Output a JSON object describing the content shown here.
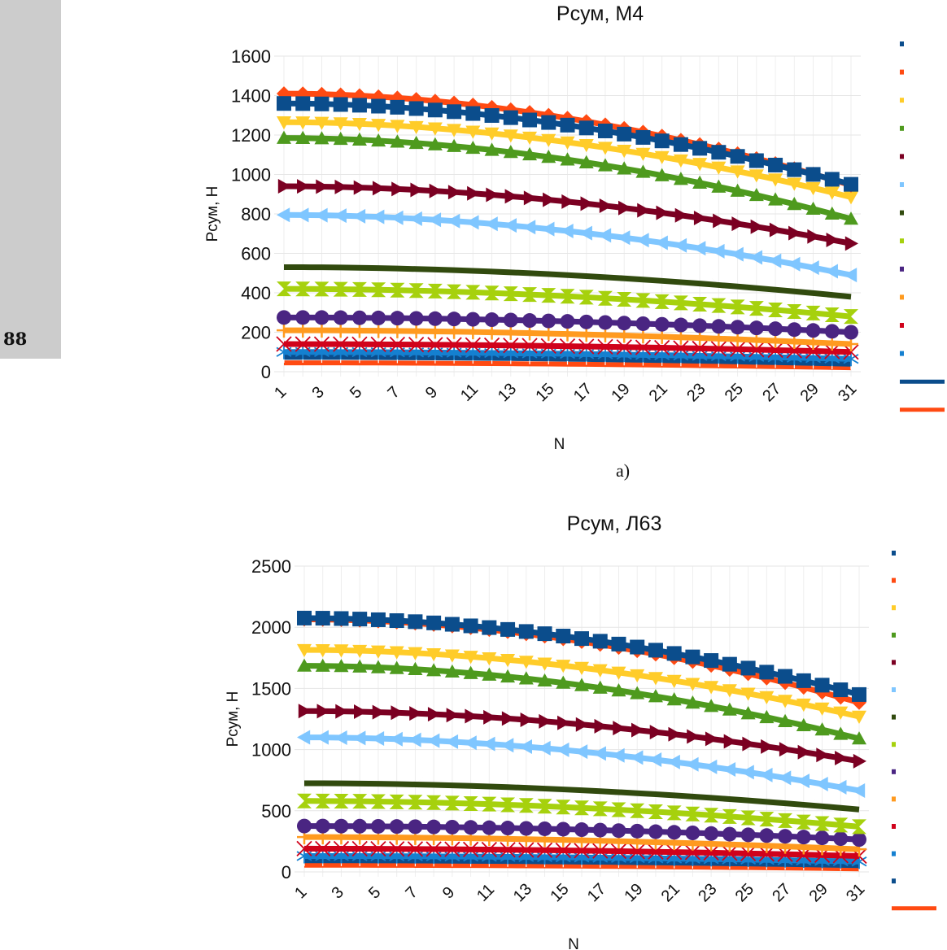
{
  "page": {
    "number": "88",
    "caption_a": "а)"
  },
  "chart_data": [
    {
      "type": "line",
      "title": "Рсум, М4",
      "xlabel": "N",
      "ylabel": "Рсум, Н",
      "ylim": [
        0,
        1600
      ],
      "yticks": [
        "0",
        "200",
        "400",
        "600",
        "800",
        "1000",
        "1200",
        "1400",
        "1600"
      ],
      "x": [
        1,
        2,
        3,
        4,
        5,
        6,
        7,
        8,
        9,
        10,
        11,
        12,
        13,
        14,
        15,
        16,
        17,
        18,
        19,
        20,
        21,
        22,
        23,
        24,
        25,
        26,
        27,
        28,
        29,
        30,
        31
      ],
      "xtick_labels": [
        "1",
        "3",
        "5",
        "7",
        "9",
        "11",
        "13",
        "15",
        "17",
        "19",
        "21",
        "23",
        "25",
        "27",
        "29",
        "31"
      ],
      "grid": true,
      "legend": "right",
      "series": [
        {
          "name": "",
          "color": "#0b4d8c",
          "marker": "square",
          "start": 1360,
          "end": 950
        },
        {
          "name": "",
          "color": "#ff4a12",
          "marker": "diamond",
          "start": 1410,
          "end": 945
        },
        {
          "name": "",
          "color": "#ffcc29",
          "marker": "triangle-down",
          "start": 1265,
          "end": 885
        },
        {
          "name": "",
          "color": "#4e9a1e",
          "marker": "triangle-up",
          "start": 1185,
          "end": 775
        },
        {
          "name": "",
          "color": "#7b0022",
          "marker": "triangle-right",
          "start": 940,
          "end": 650
        },
        {
          "name": "",
          "color": "#7fc6ff",
          "marker": "triangle-left",
          "start": 795,
          "end": 490
        },
        {
          "name": "",
          "color": "#314a0e",
          "marker": "bowtie",
          "start": 530,
          "end": 380
        },
        {
          "name": "",
          "color": "#a6d10d",
          "marker": "hourglass",
          "start": 420,
          "end": 280
        },
        {
          "name": "",
          "color": "#4a2582",
          "marker": "circle",
          "start": 275,
          "end": 200
        },
        {
          "name": "",
          "color": "#ff9a1f",
          "marker": "plus",
          "start": 210,
          "end": 140
        },
        {
          "name": "",
          "color": "#d0021b",
          "marker": "x",
          "start": 140,
          "end": 100
        },
        {
          "name": "",
          "color": "#1580d0",
          "marker": "star",
          "start": 100,
          "end": 65
        },
        {
          "name": "",
          "color": "#0b4d8c",
          "marker": "crosshair",
          "start": 75,
          "end": 40
        },
        {
          "name": "",
          "color": "#ff4a12",
          "marker": "none",
          "start": 45,
          "end": 20
        }
      ]
    },
    {
      "type": "line",
      "title": "Рсум, Л63",
      "xlabel": "N",
      "ylabel": "Рсум, Н",
      "ylim": [
        0,
        2500
      ],
      "yticks": [
        "0",
        "500",
        "1000",
        "1500",
        "2000",
        "2500"
      ],
      "x": [
        1,
        2,
        3,
        4,
        5,
        6,
        7,
        8,
        9,
        10,
        11,
        12,
        13,
        14,
        15,
        16,
        17,
        18,
        19,
        20,
        21,
        22,
        23,
        24,
        25,
        26,
        27,
        28,
        29,
        30,
        31
      ],
      "xtick_labels": [
        "1",
        "3",
        "5",
        "7",
        "9",
        "11",
        "13",
        "15",
        "17",
        "19",
        "21",
        "23",
        "25",
        "27",
        "29",
        "31"
      ],
      "grid": true,
      "legend": "right",
      "series": [
        {
          "name": "",
          "color": "#0b4d8c",
          "marker": "square",
          "start": 2075,
          "end": 1450
        },
        {
          "name": "",
          "color": "#ff4a12",
          "marker": "diamond",
          "start": 2065,
          "end": 1385
        },
        {
          "name": "",
          "color": "#ffcc29",
          "marker": "triangle-down",
          "start": 1815,
          "end": 1270
        },
        {
          "name": "",
          "color": "#4e9a1e",
          "marker": "triangle-up",
          "start": 1685,
          "end": 1090
        },
        {
          "name": "",
          "color": "#7b0022",
          "marker": "triangle-right",
          "start": 1315,
          "end": 905
        },
        {
          "name": "",
          "color": "#7fc6ff",
          "marker": "triangle-left",
          "start": 1100,
          "end": 665
        },
        {
          "name": "",
          "color": "#314a0e",
          "marker": "bowtie",
          "start": 725,
          "end": 510
        },
        {
          "name": "",
          "color": "#a6d10d",
          "marker": "hourglass",
          "start": 580,
          "end": 370
        },
        {
          "name": "",
          "color": "#4a2582",
          "marker": "circle",
          "start": 375,
          "end": 265
        },
        {
          "name": "",
          "color": "#ff9a1f",
          "marker": "plus",
          "start": 285,
          "end": 185
        },
        {
          "name": "",
          "color": "#d0021b",
          "marker": "x",
          "start": 190,
          "end": 130
        },
        {
          "name": "",
          "color": "#1580d0",
          "marker": "star",
          "start": 130,
          "end": 85
        },
        {
          "name": "",
          "color": "#0b4d8c",
          "marker": "crosshair",
          "start": 95,
          "end": 55
        },
        {
          "name": "",
          "color": "#ff4a12",
          "marker": "none",
          "start": 55,
          "end": 25
        }
      ]
    }
  ]
}
